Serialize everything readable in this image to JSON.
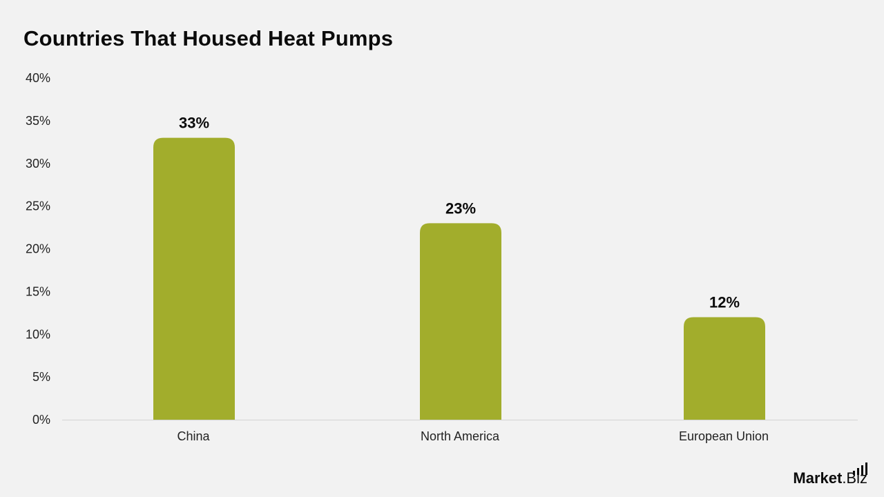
{
  "chart_data": {
    "type": "bar",
    "title": "Countries That Housed Heat Pumps",
    "categories": [
      "China",
      "North America",
      "European Union"
    ],
    "values": [
      33,
      23,
      12
    ],
    "data_labels": [
      "33%",
      "23%",
      "12%"
    ],
    "ylim": [
      0,
      40
    ],
    "yticks": [
      0,
      5,
      10,
      15,
      20,
      25,
      30,
      35,
      40
    ],
    "ytick_labels": [
      "0%",
      "5%",
      "10%",
      "15%",
      "20%",
      "25%",
      "30%",
      "35%",
      "40%"
    ],
    "xlabel": "",
    "ylabel": "",
    "grid": false,
    "legend": false,
    "bar_color": "#a2ad2c"
  },
  "branding": {
    "logo_main": "Market",
    "logo_suffix": ".Biz"
  }
}
